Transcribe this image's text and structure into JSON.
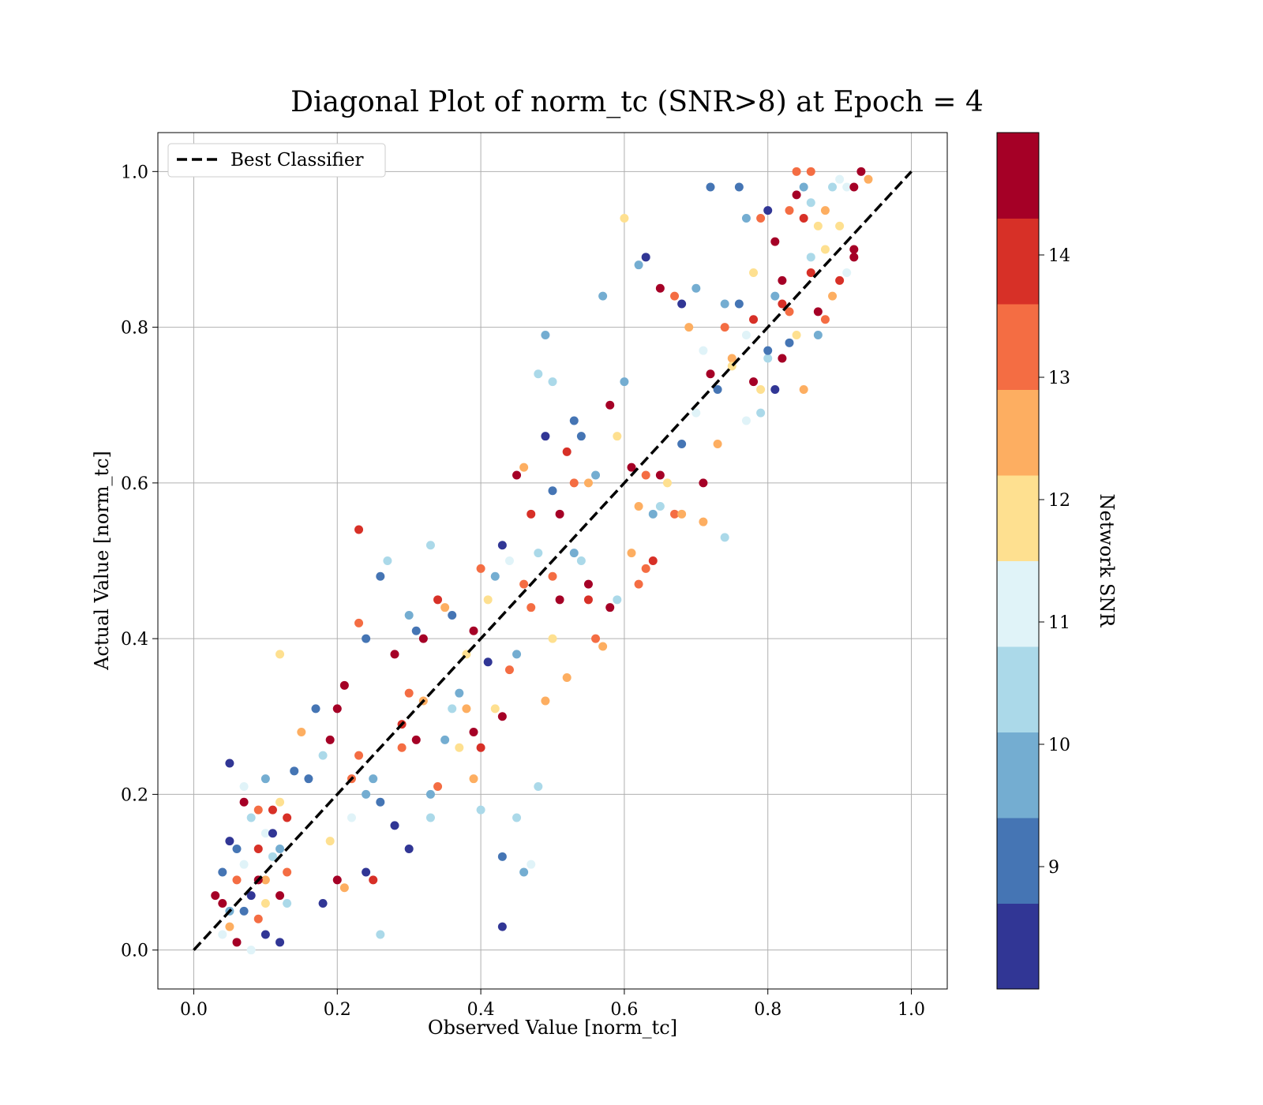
{
  "chart_data": {
    "type": "scatter",
    "title": "Diagonal Plot of norm_tc (SNR>8) at Epoch = 4",
    "xlabel": "Observed Value [norm_tc]",
    "ylabel": "Actual Value [norm_tc]",
    "xlim": [
      -0.05,
      1.05
    ],
    "ylim": [
      -0.05,
      1.05
    ],
    "xticks": [
      "0.0",
      "0.2",
      "0.4",
      "0.6",
      "0.8",
      "1.0"
    ],
    "yticks": [
      "0.0",
      "0.2",
      "0.4",
      "0.6",
      "0.8",
      "1.0"
    ],
    "grid": true,
    "legend": {
      "position": "top-left",
      "entries": [
        "Best Classifier"
      ]
    },
    "reference_line": {
      "name": "Best Classifier",
      "style": "dashed",
      "color": "#000000",
      "x": [
        0,
        1
      ],
      "y": [
        0,
        1
      ]
    },
    "colorbar": {
      "label": "Network SNR",
      "range": [
        8,
        15
      ],
      "ticks": [
        "9",
        "10",
        "11",
        "12",
        "13",
        "14"
      ],
      "colors": [
        "#313695",
        "#4575b4",
        "#74add1",
        "#abd9e9",
        "#e0f3f8",
        "#fee090",
        "#fdae61",
        "#f46d43",
        "#d73027",
        "#a50026"
      ]
    },
    "points": [
      [
        0.04,
        0.06,
        14.8
      ],
      [
        0.05,
        0.05,
        9.5
      ],
      [
        0.06,
        0.09,
        13.2
      ],
      [
        0.07,
        0.11,
        11.0
      ],
      [
        0.08,
        0.07,
        8.4
      ],
      [
        0.09,
        0.13,
        14.1
      ],
      [
        0.1,
        0.09,
        12.3
      ],
      [
        0.11,
        0.12,
        10.2
      ],
      [
        0.12,
        0.07,
        14.6
      ],
      [
        0.13,
        0.1,
        13.6
      ],
      [
        0.04,
        0.02,
        10.9
      ],
      [
        0.05,
        0.03,
        12.5
      ],
      [
        0.06,
        0.01,
        14.4
      ],
      [
        0.07,
        0.05,
        9.1
      ],
      [
        0.08,
        0.0,
        11.2
      ],
      [
        0.09,
        0.04,
        13.0
      ],
      [
        0.1,
        0.02,
        8.2
      ],
      [
        0.12,
        0.01,
        8.6
      ],
      [
        0.13,
        0.06,
        10.4
      ],
      [
        0.03,
        0.07,
        14.9
      ],
      [
        0.04,
        0.1,
        9.0
      ],
      [
        0.06,
        0.13,
        8.8
      ],
      [
        0.07,
        0.19,
        14.7
      ],
      [
        0.08,
        0.17,
        10.6
      ],
      [
        0.09,
        0.18,
        13.5
      ],
      [
        0.1,
        0.22,
        9.6
      ],
      [
        0.11,
        0.18,
        14.2
      ],
      [
        0.12,
        0.19,
        12.2
      ],
      [
        0.13,
        0.17,
        13.8
      ],
      [
        0.1,
        0.15,
        11.4
      ],
      [
        0.11,
        0.15,
        8.7
      ],
      [
        0.12,
        0.13,
        9.4
      ],
      [
        0.1,
        0.06,
        12.0
      ],
      [
        0.09,
        0.09,
        14.5
      ],
      [
        0.05,
        0.24,
        8.5
      ],
      [
        0.05,
        0.14,
        8.3
      ],
      [
        0.07,
        0.21,
        11.3
      ],
      [
        0.14,
        0.23,
        9.2
      ],
      [
        0.15,
        0.28,
        12.6
      ],
      [
        0.16,
        0.22,
        8.9
      ],
      [
        0.17,
        0.31,
        9.3
      ],
      [
        0.18,
        0.25,
        10.5
      ],
      [
        0.19,
        0.27,
        14.8
      ],
      [
        0.2,
        0.31,
        14.3
      ],
      [
        0.21,
        0.34,
        14.9
      ],
      [
        0.22,
        0.22,
        13.3
      ],
      [
        0.23,
        0.25,
        13.1
      ],
      [
        0.24,
        0.2,
        10.1
      ],
      [
        0.25,
        0.22,
        9.4
      ],
      [
        0.26,
        0.19,
        9.0
      ],
      [
        0.18,
        0.06,
        8.5
      ],
      [
        0.2,
        0.09,
        14.6
      ],
      [
        0.21,
        0.08,
        12.6
      ],
      [
        0.24,
        0.1,
        8.4
      ],
      [
        0.25,
        0.09,
        14.0
      ],
      [
        0.26,
        0.02,
        10.2
      ],
      [
        0.3,
        0.13,
        8.6
      ],
      [
        0.28,
        0.16,
        8.7
      ],
      [
        0.22,
        0.17,
        10.9
      ],
      [
        0.19,
        0.14,
        12.1
      ],
      [
        0.12,
        0.38,
        12.0
      ],
      [
        0.23,
        0.42,
        13.2
      ],
      [
        0.24,
        0.4,
        9.0
      ],
      [
        0.26,
        0.48,
        9.3
      ],
      [
        0.27,
        0.5,
        10.4
      ],
      [
        0.23,
        0.54,
        14.2
      ],
      [
        0.28,
        0.38,
        14.6
      ],
      [
        0.3,
        0.43,
        10.0
      ],
      [
        0.31,
        0.41,
        8.9
      ],
      [
        0.32,
        0.4,
        14.7
      ],
      [
        0.33,
        0.52,
        10.6
      ],
      [
        0.34,
        0.45,
        13.9
      ],
      [
        0.35,
        0.44,
        12.3
      ],
      [
        0.36,
        0.43,
        9.1
      ],
      [
        0.37,
        0.33,
        9.8
      ],
      [
        0.38,
        0.38,
        11.6
      ],
      [
        0.39,
        0.41,
        14.5
      ],
      [
        0.4,
        0.49,
        13.1
      ],
      [
        0.41,
        0.45,
        12.0
      ],
      [
        0.42,
        0.48,
        9.4
      ],
      [
        0.29,
        0.29,
        14.1
      ],
      [
        0.3,
        0.33,
        13.6
      ],
      [
        0.31,
        0.27,
        14.8
      ],
      [
        0.32,
        0.32,
        12.4
      ],
      [
        0.33,
        0.2,
        10.1
      ],
      [
        0.34,
        0.21,
        13.5
      ],
      [
        0.35,
        0.27,
        9.9
      ],
      [
        0.36,
        0.31,
        10.5
      ],
      [
        0.37,
        0.26,
        12.0
      ],
      [
        0.38,
        0.31,
        12.7
      ],
      [
        0.39,
        0.28,
        14.3
      ],
      [
        0.4,
        0.26,
        14.0
      ],
      [
        0.41,
        0.37,
        8.6
      ],
      [
        0.42,
        0.31,
        12.1
      ],
      [
        0.43,
        0.3,
        14.9
      ],
      [
        0.44,
        0.36,
        13.4
      ],
      [
        0.45,
        0.38,
        9.5
      ],
      [
        0.46,
        0.62,
        12.6
      ],
      [
        0.47,
        0.56,
        13.7
      ],
      [
        0.48,
        0.51,
        10.2
      ],
      [
        0.4,
        0.18,
        10.3
      ],
      [
        0.43,
        0.12,
        9.3
      ],
      [
        0.43,
        0.03,
        8.4
      ],
      [
        0.46,
        0.1,
        9.6
      ],
      [
        0.47,
        0.11,
        11.2
      ],
      [
        0.48,
        0.21,
        10.3
      ],
      [
        0.45,
        0.17,
        10.5
      ],
      [
        0.39,
        0.22,
        12.7
      ],
      [
        0.33,
        0.17,
        10.7
      ],
      [
        0.29,
        0.26,
        12.9
      ],
      [
        0.43,
        0.52,
        8.2
      ],
      [
        0.44,
        0.5,
        10.8
      ],
      [
        0.45,
        0.61,
        14.8
      ],
      [
        0.46,
        0.47,
        12.9
      ],
      [
        0.47,
        0.44,
        13.4
      ],
      [
        0.48,
        0.74,
        10.3
      ],
      [
        0.49,
        0.79,
        10.1
      ],
      [
        0.49,
        0.66,
        8.6
      ],
      [
        0.5,
        0.59,
        9.2
      ],
      [
        0.51,
        0.56,
        14.4
      ],
      [
        0.52,
        0.64,
        14.0
      ],
      [
        0.53,
        0.68,
        8.9
      ],
      [
        0.54,
        0.66,
        9.0
      ],
      [
        0.55,
        0.6,
        12.3
      ],
      [
        0.56,
        0.61,
        9.4
      ],
      [
        0.57,
        0.84,
        10.0
      ],
      [
        0.58,
        0.7,
        14.8
      ],
      [
        0.59,
        0.66,
        12.0
      ],
      [
        0.6,
        0.73,
        9.5
      ],
      [
        0.6,
        0.94,
        11.8
      ],
      [
        0.5,
        0.48,
        13.3
      ],
      [
        0.51,
        0.45,
        14.6
      ],
      [
        0.52,
        0.35,
        12.7
      ],
      [
        0.53,
        0.51,
        9.6
      ],
      [
        0.54,
        0.5,
        10.7
      ],
      [
        0.55,
        0.45,
        14.1
      ],
      [
        0.56,
        0.4,
        13.2
      ],
      [
        0.57,
        0.39,
        12.5
      ],
      [
        0.58,
        0.44,
        14.9
      ],
      [
        0.59,
        0.45,
        10.4
      ],
      [
        0.49,
        0.32,
        12.6
      ],
      [
        0.5,
        0.4,
        11.9
      ],
      [
        0.5,
        0.73,
        10.2
      ],
      [
        0.55,
        0.47,
        14.7
      ],
      [
        0.53,
        0.6,
        13.0
      ],
      [
        0.61,
        0.62,
        14.3
      ],
      [
        0.62,
        0.57,
        12.8
      ],
      [
        0.63,
        0.61,
        13.5
      ],
      [
        0.64,
        0.56,
        9.7
      ],
      [
        0.65,
        0.61,
        14.6
      ],
      [
        0.61,
        0.51,
        12.5
      ],
      [
        0.62,
        0.47,
        13.6
      ],
      [
        0.63,
        0.49,
        13.0
      ],
      [
        0.64,
        0.5,
        13.8
      ],
      [
        0.65,
        0.57,
        10.3
      ],
      [
        0.66,
        0.6,
        11.5
      ],
      [
        0.67,
        0.56,
        12.9
      ],
      [
        0.68,
        0.65,
        9.0
      ],
      [
        0.7,
        0.69,
        11.2
      ],
      [
        0.71,
        0.6,
        14.6
      ],
      [
        0.62,
        0.88,
        9.4
      ],
      [
        0.63,
        0.89,
        8.5
      ],
      [
        0.65,
        0.85,
        14.7
      ],
      [
        0.67,
        0.84,
        13.0
      ],
      [
        0.68,
        0.83,
        8.3
      ],
      [
        0.69,
        0.8,
        12.7
      ],
      [
        0.7,
        0.85,
        10.0
      ],
      [
        0.71,
        0.77,
        11.4
      ],
      [
        0.72,
        0.74,
        14.3
      ],
      [
        0.73,
        0.72,
        8.8
      ],
      [
        0.74,
        0.8,
        13.6
      ],
      [
        0.75,
        0.76,
        12.6
      ],
      [
        0.76,
        0.83,
        9.1
      ],
      [
        0.77,
        0.79,
        10.8
      ],
      [
        0.78,
        0.81,
        14.2
      ],
      [
        0.79,
        0.72,
        12.0
      ],
      [
        0.8,
        0.76,
        10.5
      ],
      [
        0.81,
        0.84,
        9.5
      ],
      [
        0.82,
        0.86,
        14.9
      ],
      [
        0.83,
        0.82,
        13.4
      ],
      [
        0.72,
        0.98,
        9.3
      ],
      [
        0.76,
        0.98,
        9.0
      ],
      [
        0.77,
        0.94,
        9.6
      ],
      [
        0.79,
        0.94,
        13.2
      ],
      [
        0.8,
        0.95,
        8.2
      ],
      [
        0.81,
        0.91,
        14.6
      ],
      [
        0.83,
        0.95,
        13.5
      ],
      [
        0.84,
        0.97,
        14.4
      ],
      [
        0.85,
        0.98,
        9.6
      ],
      [
        0.86,
        0.96,
        10.5
      ],
      [
        0.87,
        0.93,
        12.2
      ],
      [
        0.88,
        0.95,
        12.6
      ],
      [
        0.89,
        0.98,
        10.3
      ],
      [
        0.9,
        0.99,
        11.1
      ],
      [
        0.91,
        0.98,
        10.8
      ],
      [
        0.92,
        0.98,
        14.4
      ],
      [
        0.93,
        1.0,
        14.9
      ],
      [
        0.94,
        0.99,
        12.7
      ],
      [
        0.84,
        1.0,
        13.1
      ],
      [
        0.86,
        1.0,
        12.9
      ],
      [
        0.74,
        0.53,
        10.2
      ],
      [
        0.71,
        0.55,
        12.7
      ],
      [
        0.68,
        0.56,
        12.5
      ],
      [
        0.73,
        0.65,
        12.4
      ],
      [
        0.74,
        0.83,
        10.0
      ],
      [
        0.75,
        0.75,
        12.1
      ],
      [
        0.77,
        0.68,
        11.3
      ],
      [
        0.78,
        0.73,
        14.8
      ],
      [
        0.79,
        0.69,
        10.4
      ],
      [
        0.81,
        0.72,
        8.4
      ],
      [
        0.82,
        0.76,
        14.5
      ],
      [
        0.83,
        0.78,
        9.1
      ],
      [
        0.84,
        0.79,
        12.0
      ],
      [
        0.85,
        0.72,
        12.6
      ],
      [
        0.86,
        0.89,
        10.7
      ],
      [
        0.87,
        0.79,
        9.7
      ],
      [
        0.88,
        0.81,
        13.4
      ],
      [
        0.89,
        0.84,
        12.4
      ],
      [
        0.9,
        0.86,
        14.0
      ],
      [
        0.91,
        0.87,
        10.9
      ],
      [
        0.92,
        0.89,
        14.8
      ],
      [
        0.92,
        0.9,
        14.7
      ],
      [
        0.9,
        0.93,
        11.9
      ],
      [
        0.88,
        0.9,
        12.2
      ],
      [
        0.87,
        0.82,
        14.9
      ],
      [
        0.86,
        0.87,
        13.7
      ],
      [
        0.85,
        0.94,
        13.9
      ],
      [
        0.82,
        0.83,
        14.1
      ],
      [
        0.8,
        0.77,
        9.1
      ],
      [
        0.78,
        0.87,
        11.5
      ]
    ]
  }
}
